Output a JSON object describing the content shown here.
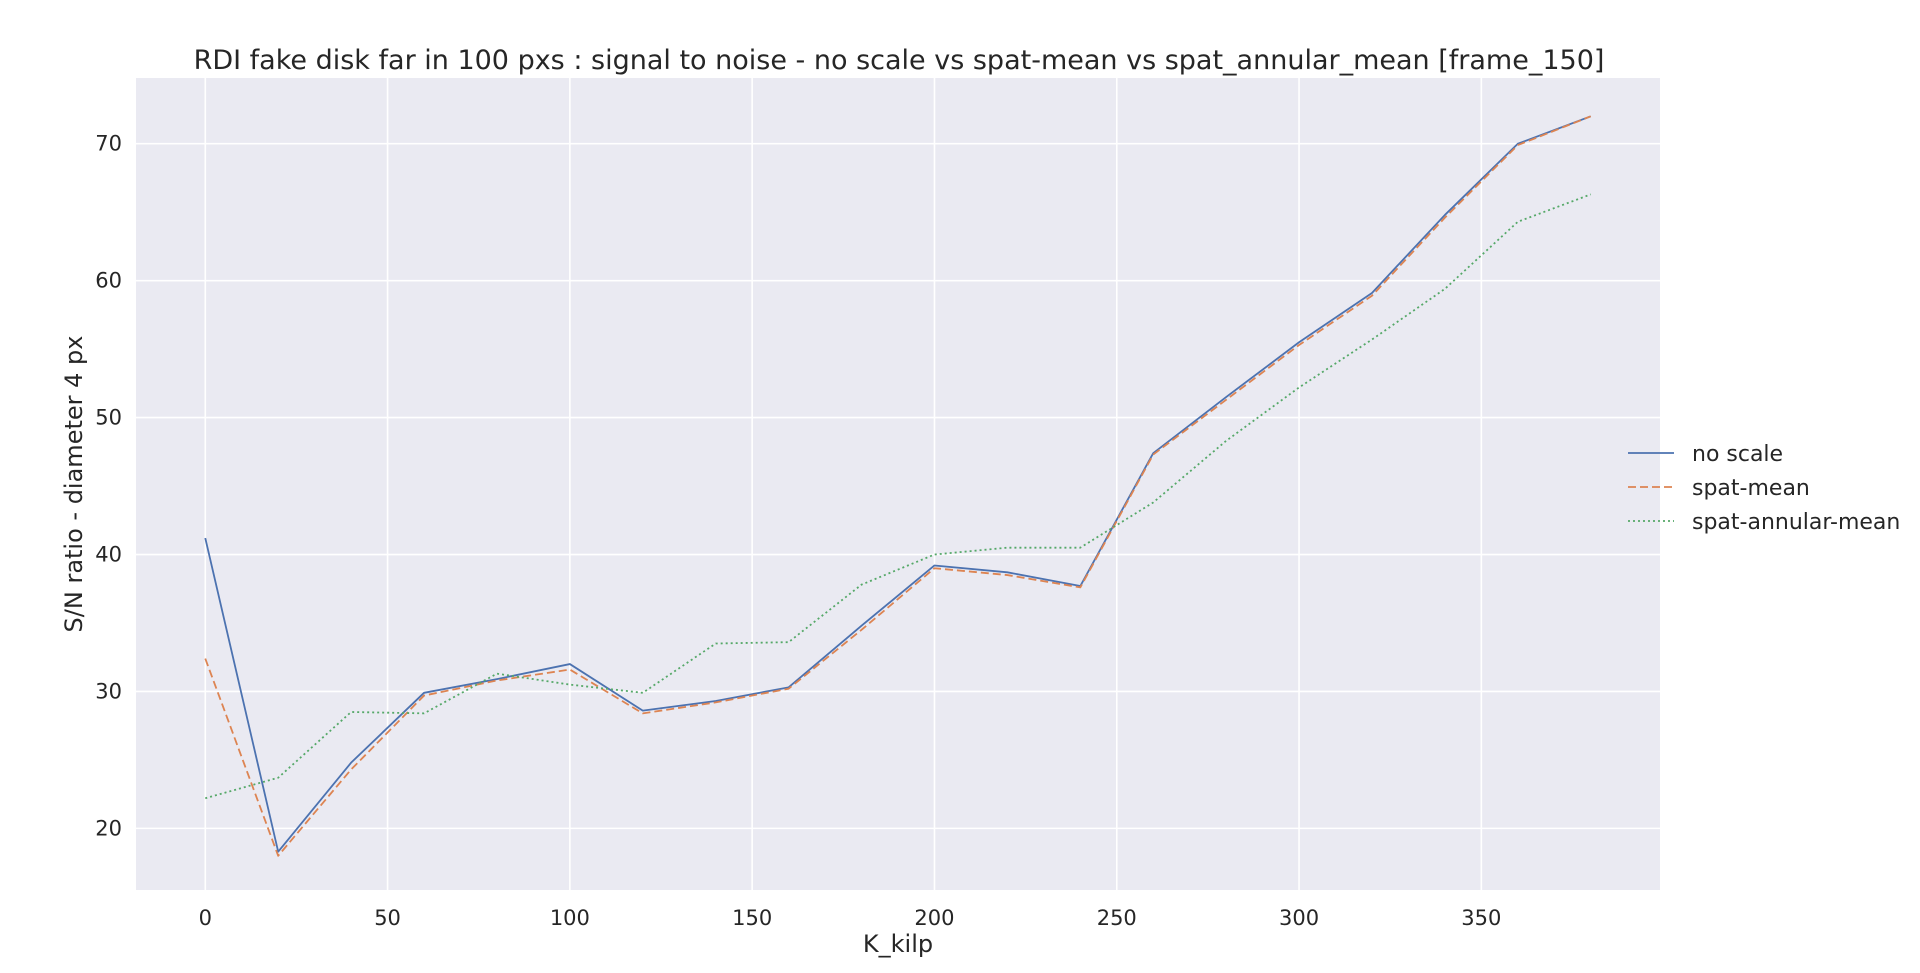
{
  "chart_data": {
    "type": "line",
    "title": "RDI fake disk far in 100 pxs : signal to noise - no scale vs spat-mean vs spat_annular_mean [frame_150]",
    "xlabel": "K_kilp",
    "ylabel": "S/N ratio - diameter 4 px",
    "xlim": [
      -19,
      399
    ],
    "ylim": [
      15.5,
      74.8
    ],
    "xticks": [
      0,
      50,
      100,
      150,
      200,
      250,
      300,
      350
    ],
    "yticks": [
      20,
      30,
      40,
      50,
      60,
      70
    ],
    "grid": true,
    "legend_position": "center-right",
    "x": [
      0,
      20,
      40,
      60,
      80,
      100,
      120,
      140,
      160,
      180,
      200,
      220,
      240,
      260,
      280,
      300,
      320,
      340,
      360,
      380
    ],
    "series": [
      {
        "name": "no scale",
        "color": "#4c72b0",
        "dash": "solid",
        "values": [
          41.2,
          18.3,
          24.8,
          29.9,
          30.9,
          32.0,
          28.6,
          29.3,
          30.3,
          34.8,
          39.2,
          38.7,
          37.7,
          47.4,
          51.5,
          55.5,
          59.1,
          64.8,
          70.0,
          72.0
        ]
      },
      {
        "name": "spat-mean",
        "color": "#dd8452",
        "dash": "dashed",
        "values": [
          32.4,
          18.0,
          24.3,
          29.7,
          30.8,
          31.6,
          28.4,
          29.2,
          30.2,
          34.5,
          39.0,
          38.5,
          37.6,
          47.3,
          51.3,
          55.3,
          58.9,
          64.6,
          69.9,
          72.0
        ]
      },
      {
        "name": "spat-annular-mean",
        "color": "#55a868",
        "dash": "dotted",
        "values": [
          22.2,
          23.7,
          28.5,
          28.4,
          31.3,
          30.5,
          29.9,
          33.5,
          33.6,
          37.8,
          40.0,
          40.5,
          40.5,
          43.8,
          48.3,
          52.2,
          55.7,
          59.4,
          64.3,
          66.3
        ]
      }
    ]
  },
  "colors": {
    "plot_background": "#eaeaf2",
    "grid": "#ffffff",
    "text": "#262626"
  }
}
